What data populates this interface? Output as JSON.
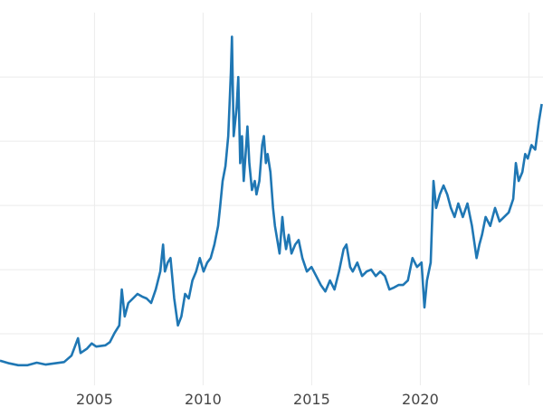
{
  "chart_data": {
    "type": "line",
    "title": "",
    "xlabel": "",
    "ylabel": "",
    "xlim": [
      2000.65,
      2025.65
    ],
    "ylim": [
      0,
      62
    ],
    "grid": true,
    "x_ticks": [
      2005,
      2010,
      2015,
      2020,
      2025
    ],
    "x_tick_labels": [
      "2005",
      "2010",
      "2015",
      "2020",
      ""
    ],
    "y_gridlines": [
      10,
      20,
      30,
      40,
      50
    ],
    "line_color": "#1f77b4",
    "series": [
      {
        "x": [
          2000.65,
          2001.07,
          2001.49,
          2001.92,
          2002.34,
          2002.76,
          2003.18,
          2003.6,
          2003.94,
          2004.24,
          2004.36,
          2004.66,
          2004.87,
          2005.08,
          2005.5,
          2005.71,
          2005.92,
          2006.14,
          2006.26,
          2006.39,
          2006.56,
          2006.77,
          2006.98,
          2007.19,
          2007.4,
          2007.61,
          2007.82,
          2008.03,
          2008.16,
          2008.24,
          2008.37,
          2008.5,
          2008.67,
          2008.84,
          2009.0,
          2009.17,
          2009.34,
          2009.51,
          2009.68,
          2009.85,
          2010.02,
          2010.19,
          2010.35,
          2010.52,
          2010.69,
          2010.78,
          2010.9,
          2011.03,
          2011.16,
          2011.28,
          2011.33,
          2011.41,
          2011.54,
          2011.62,
          2011.71,
          2011.79,
          2011.87,
          2011.96,
          2012.04,
          2012.13,
          2012.25,
          2012.38,
          2012.46,
          2012.59,
          2012.72,
          2012.8,
          2012.89,
          2012.97,
          2013.1,
          2013.22,
          2013.31,
          2013.52,
          2013.65,
          2013.73,
          2013.82,
          2013.94,
          2014.07,
          2014.24,
          2014.4,
          2014.57,
          2014.78,
          2014.99,
          2015.21,
          2015.42,
          2015.63,
          2015.84,
          2016.05,
          2016.26,
          2016.47,
          2016.6,
          2016.77,
          2016.89,
          2017.1,
          2017.32,
          2017.53,
          2017.74,
          2017.95,
          2018.16,
          2018.37,
          2018.58,
          2018.79,
          2019.0,
          2019.21,
          2019.43,
          2019.64,
          2019.85,
          2020.06,
          2020.19,
          2020.31,
          2020.48,
          2020.61,
          2020.73,
          2020.9,
          2021.07,
          2021.24,
          2021.41,
          2021.58,
          2021.75,
          2021.96,
          2022.17,
          2022.38,
          2022.59,
          2022.72,
          2022.84,
          2023.01,
          2023.22,
          2023.44,
          2023.65,
          2023.86,
          2024.07,
          2024.28,
          2024.4,
          2024.53,
          2024.7,
          2024.83,
          2024.95,
          2025.12,
          2025.29,
          2025.46,
          2025.59
        ],
        "y": [
          5.8,
          5.4,
          5.1,
          5.1,
          5.5,
          5.2,
          5.4,
          5.6,
          6.6,
          9.3,
          7.0,
          7.7,
          8.5,
          8.0,
          8.2,
          8.7,
          10.1,
          11.3,
          16.9,
          12.7,
          14.8,
          15.5,
          16.2,
          15.8,
          15.5,
          14.8,
          16.9,
          19.7,
          23.9,
          19.7,
          21.1,
          21.8,
          15.5,
          11.3,
          12.7,
          16.2,
          15.5,
          18.3,
          19.7,
          21.8,
          19.7,
          21.1,
          21.8,
          23.9,
          26.8,
          29.6,
          33.8,
          36.1,
          40.8,
          50.7,
          56.3,
          40.8,
          45.1,
          50.0,
          36.6,
          40.8,
          33.8,
          38.0,
          42.3,
          36.6,
          32.4,
          33.8,
          31.7,
          33.8,
          39.4,
          40.8,
          36.6,
          38.0,
          35.2,
          29.6,
          26.8,
          22.5,
          28.2,
          25.4,
          23.2,
          25.4,
          22.5,
          23.9,
          24.6,
          21.8,
          19.7,
          20.4,
          19.0,
          17.6,
          16.6,
          18.3,
          16.9,
          19.7,
          23.2,
          23.9,
          20.4,
          19.7,
          21.1,
          19.0,
          19.7,
          20.0,
          19.0,
          19.7,
          19.0,
          16.9,
          17.2,
          17.6,
          17.6,
          18.3,
          21.8,
          20.4,
          21.1,
          14.1,
          18.3,
          21.1,
          33.8,
          29.6,
          31.7,
          33.1,
          31.7,
          29.6,
          28.2,
          30.3,
          28.2,
          30.3,
          26.8,
          21.8,
          23.9,
          25.4,
          28.2,
          26.8,
          29.6,
          27.5,
          28.2,
          28.9,
          31.0,
          36.6,
          33.8,
          35.2,
          38.0,
          37.3,
          39.4,
          38.7,
          43.0,
          45.8
        ]
      }
    ]
  }
}
